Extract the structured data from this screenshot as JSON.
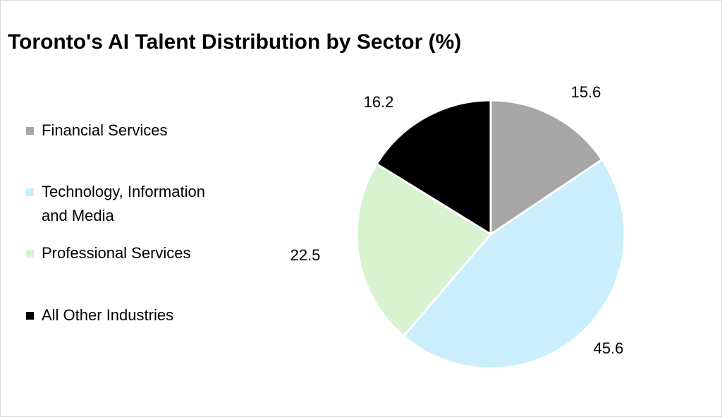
{
  "chart_data": {
    "type": "pie",
    "title": "Toronto's AI Talent Distribution by Sector (%)",
    "categories": [
      "Financial Services",
      "Technology, Information and Media",
      "Professional Services",
      "All Other Industries"
    ],
    "values": [
      15.6,
      45.6,
      22.5,
      16.2
    ],
    "data_labels": [
      "15.6",
      "45.6",
      "22.5",
      "16.2"
    ],
    "colors": [
      "#a6a6a6",
      "#caeefb",
      "#d9f2d0",
      "#000000"
    ],
    "start_angle": "12 o'clock",
    "direction": "clockwise",
    "legend_placement": "left",
    "legend_lines": [
      [
        "Financial Services"
      ],
      [
        "Technology, Information",
        "and Media"
      ],
      [
        "Professional Services"
      ],
      [
        "All Other Industries"
      ]
    ]
  }
}
